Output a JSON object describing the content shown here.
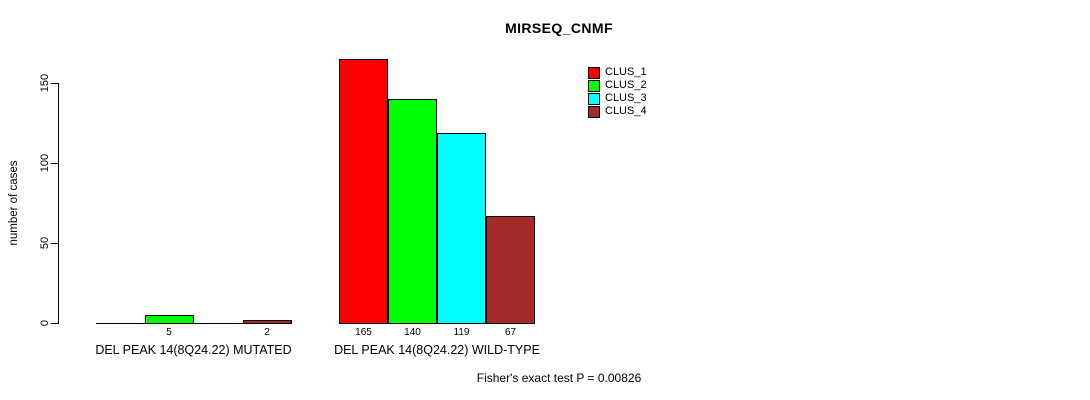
{
  "page": {
    "background_color": "#ffffff",
    "text_color": "#000000"
  },
  "chart_data": {
    "type": "bar",
    "title": "MIRSEQ_CNMF",
    "xlabel": "",
    "ylabel": "number of cases",
    "ylim": [
      0,
      165
    ],
    "yticks": [
      0,
      50,
      100,
      150
    ],
    "grid": false,
    "legend_position": "top-right",
    "categories": [
      "DEL PEAK 14(8Q24.22) MUTATED",
      "DEL PEAK 14(8Q24.22) WILD-TYPE"
    ],
    "series": [
      {
        "name": "CLUS_1",
        "color": "#ff0000",
        "values": [
          0,
          165
        ]
      },
      {
        "name": "CLUS_2",
        "color": "#00ff00",
        "values": [
          5,
          140
        ]
      },
      {
        "name": "CLUS_3",
        "color": "#00ffff",
        "values": [
          0,
          119
        ]
      },
      {
        "name": "CLUS_4",
        "color": "#a52a2a",
        "values": [
          2,
          67
        ]
      }
    ],
    "bar_value_labels": [
      [
        "",
        "5",
        "",
        "2"
      ],
      [
        "165",
        "140",
        "119",
        "67"
      ]
    ],
    "footnote": "Fisher's exact test P = 0.00826"
  }
}
